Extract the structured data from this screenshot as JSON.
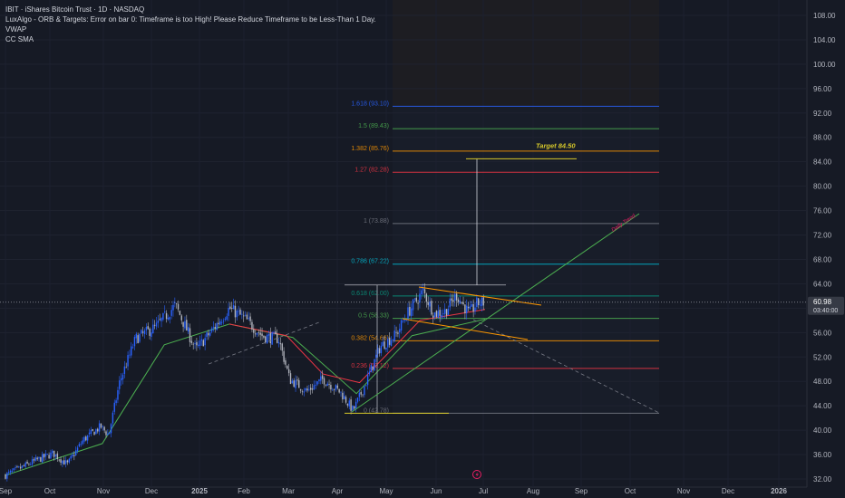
{
  "header": {
    "title": "IBIT · iShares Bitcoin Trust · 1D · NASDAQ",
    "indicators": [
      "LuxAlgo - ORB & Targets: Error on bar 0: Timeframe is too High! Please Reduce Timeframe to be Less-Than 1 Day.",
      "VWAP",
      "CC SMA"
    ]
  },
  "colors": {
    "background": "#161a25",
    "candle_up": "#2962ff",
    "candle_down": "#b2b5be",
    "sma": "#4caf50",
    "vwap": "#f23645",
    "target": "#d6c82a",
    "trend": "#4caf50"
  },
  "chart_data": {
    "type": "candlestick",
    "x_ticks": [
      "Sep",
      "Oct",
      "Nov",
      "Dec",
      "2025",
      "Feb",
      "Mar",
      "Apr",
      "May",
      "Jun",
      "Jul",
      "Aug",
      "Sep",
      "Oct",
      "Nov",
      "Dec",
      "2026"
    ],
    "y_ticks": [
      "108.00",
      "104.00",
      "100.00",
      "96.00",
      "92.00",
      "88.00",
      "84.00",
      "80.00",
      "76.00",
      "72.00",
      "68.00",
      "64.00",
      "60.00",
      "56.00",
      "52.00",
      "48.00",
      "44.00",
      "40.00",
      "36.00",
      "32.00"
    ],
    "ylim": [
      31,
      109
    ],
    "last_price": {
      "value": "60.98",
      "countdown": "03:40:00"
    },
    "price_path": [
      [
        "2024-09-01",
        32.6
      ],
      [
        "2024-09-20",
        35.0
      ],
      [
        "2024-10-01",
        36.2
      ],
      [
        "2024-10-10",
        34.4
      ],
      [
        "2024-10-20",
        38.4
      ],
      [
        "2024-10-31",
        40.6
      ],
      [
        "2024-11-05",
        39.2
      ],
      [
        "2024-11-12",
        48.0
      ],
      [
        "2024-11-22",
        55.0
      ],
      [
        "2024-12-05",
        57.0
      ],
      [
        "2024-12-17",
        60.5
      ],
      [
        "2024-12-30",
        53.2
      ],
      [
        "2025-01-08",
        56.0
      ],
      [
        "2025-01-20",
        60.0
      ],
      [
        "2025-01-30",
        58.2
      ],
      [
        "2025-02-10",
        55.4
      ],
      [
        "2025-02-20",
        55.0
      ],
      [
        "2025-02-27",
        48.3
      ],
      [
        "2025-03-10",
        46.4
      ],
      [
        "2025-03-20",
        48.4
      ],
      [
        "2025-03-31",
        46.2
      ],
      [
        "2025-04-08",
        43.2
      ],
      [
        "2025-04-15",
        47.2
      ],
      [
        "2025-04-25",
        53.7
      ],
      [
        "2025-05-05",
        55.7
      ],
      [
        "2025-05-12",
        59.1
      ],
      [
        "2025-05-22",
        62.8
      ],
      [
        "2025-05-29",
        59.1
      ],
      [
        "2025-06-05",
        59.5
      ],
      [
        "2025-06-12",
        62.2
      ],
      [
        "2025-06-20",
        59.1
      ],
      [
        "2025-06-25",
        60.8
      ],
      [
        "2025-06-30",
        60.98
      ]
    ],
    "overlays": {
      "cc_sma": {
        "name": "CC SMA",
        "points": [
          [
            "2024-09-01",
            32.6
          ],
          [
            "2024-11-01",
            37.8
          ],
          [
            "2024-12-10",
            54.0
          ],
          [
            "2025-01-20",
            57.4
          ],
          [
            "2025-03-01",
            55.2
          ],
          [
            "2025-04-10",
            46.0
          ],
          [
            "2025-05-15",
            55.5
          ],
          [
            "2025-06-30",
            58.2
          ]
        ]
      },
      "vwap": {
        "name": "VWAP",
        "points": [
          [
            "2025-01-20",
            57.4
          ],
          [
            "2025-02-25",
            55.5
          ],
          [
            "2025-03-20",
            49.2
          ],
          [
            "2025-04-12",
            47.8
          ],
          [
            "2025-05-20",
            58.0
          ],
          [
            "2025-06-30",
            59.8
          ]
        ]
      }
    },
    "fib_levels": [
      {
        "label": "0 (42.78)",
        "ratio": 0,
        "price": 42.78,
        "color": "#787b86"
      },
      {
        "label": "0.236 (50.12)",
        "ratio": 0.236,
        "price": 50.12,
        "color": "#f23645"
      },
      {
        "label": "0.382 (54.66)",
        "ratio": 0.382,
        "price": 54.66,
        "color": "#ff9800"
      },
      {
        "label": "0.5 (58.33)",
        "ratio": 0.5,
        "price": 58.33,
        "color": "#4caf50"
      },
      {
        "label": "0.618 (62.00)",
        "ratio": 0.618,
        "price": 62.0,
        "color": "#089981"
      },
      {
        "label": "0.786 (67.22)",
        "ratio": 0.786,
        "price": 67.22,
        "color": "#00bcd4"
      },
      {
        "label": "1 (73.88)",
        "ratio": 1,
        "price": 73.88,
        "color": "#787b86"
      },
      {
        "label": "1.27 (82.28)",
        "ratio": 1.27,
        "price": 82.28,
        "color": "#f23645"
      },
      {
        "label": "1.382 (85.76)",
        "ratio": 1.382,
        "price": 85.76,
        "color": "#ff9800"
      },
      {
        "label": "1.5 (89.43)",
        "ratio": 1.5,
        "price": 89.43,
        "color": "#4caf50"
      },
      {
        "label": "1.618 (93.10)",
        "ratio": 1.618,
        "price": 93.1,
        "color": "#2962ff"
      }
    ],
    "annotations": {
      "target_label": "Target 84.50",
      "target_price": 84.5,
      "trend_label": "Daily Trend",
      "range_top": 63.8,
      "range_low": 42.78
    }
  }
}
